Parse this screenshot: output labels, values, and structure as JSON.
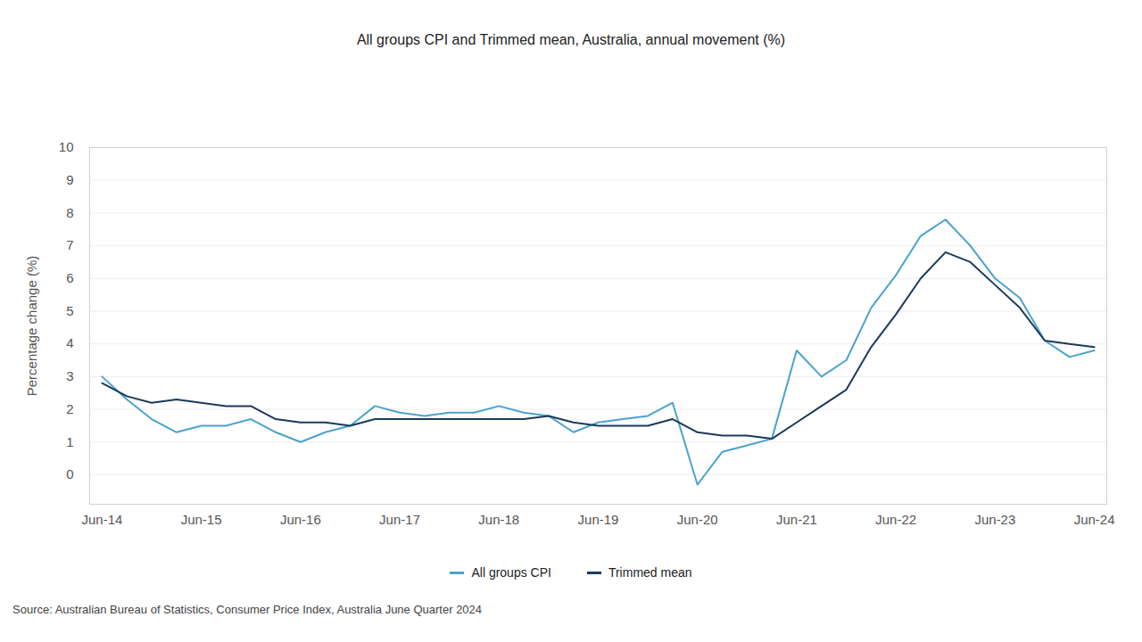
{
  "chart_data": {
    "type": "line",
    "title": "All groups CPI and Trimmed mean, Australia, annual movement (%)",
    "y_label": "Percentage change (%)",
    "source": "Source: Australian Bureau of Statistics, Consumer Price Index, Australia June Quarter 2024",
    "categories": [
      "Jun-14",
      null,
      null,
      null,
      "Jun-15",
      null,
      null,
      null,
      "Jun-16",
      null,
      null,
      null,
      "Jun-17",
      null,
      null,
      null,
      "Jun-18",
      null,
      null,
      null,
      "Jun-19",
      null,
      null,
      null,
      "Jun-20",
      null,
      null,
      null,
      "Jun-21",
      null,
      null,
      null,
      "Jun-22",
      null,
      null,
      null,
      "Jun-23",
      null,
      null,
      null,
      "Jun-24"
    ],
    "series": [
      {
        "name": "All groups CPI",
        "color": "#4aa3cc",
        "values": [
          3.0,
          2.3,
          1.7,
          1.3,
          1.5,
          1.5,
          1.7,
          1.3,
          1.0,
          1.3,
          1.5,
          2.1,
          1.9,
          1.8,
          1.9,
          1.9,
          2.1,
          1.9,
          1.8,
          1.3,
          1.6,
          1.7,
          1.8,
          2.2,
          -0.3,
          0.7,
          0.9,
          1.1,
          3.8,
          3.0,
          3.5,
          5.1,
          6.1,
          7.3,
          7.8,
          7.0,
          6.0,
          5.4,
          4.1,
          3.6,
          3.8
        ]
      },
      {
        "name": "Trimmed mean",
        "color": "#1b3a5c",
        "values": [
          2.8,
          2.4,
          2.2,
          2.3,
          2.2,
          2.1,
          2.1,
          1.7,
          1.6,
          1.6,
          1.5,
          1.7,
          1.7,
          1.7,
          1.7,
          1.7,
          1.7,
          1.7,
          1.8,
          1.6,
          1.5,
          1.5,
          1.5,
          1.7,
          1.3,
          1.2,
          1.2,
          1.1,
          1.6,
          2.1,
          2.6,
          3.9,
          4.9,
          6.0,
          6.8,
          6.5,
          5.8,
          5.1,
          4.1,
          4.0,
          3.9
        ]
      }
    ],
    "ylim": [
      -0.9,
      10
    ],
    "yticks": [
      0,
      1,
      2,
      3,
      4,
      5,
      6,
      7,
      8,
      9,
      10
    ],
    "grid": true,
    "legend": "bottom"
  }
}
